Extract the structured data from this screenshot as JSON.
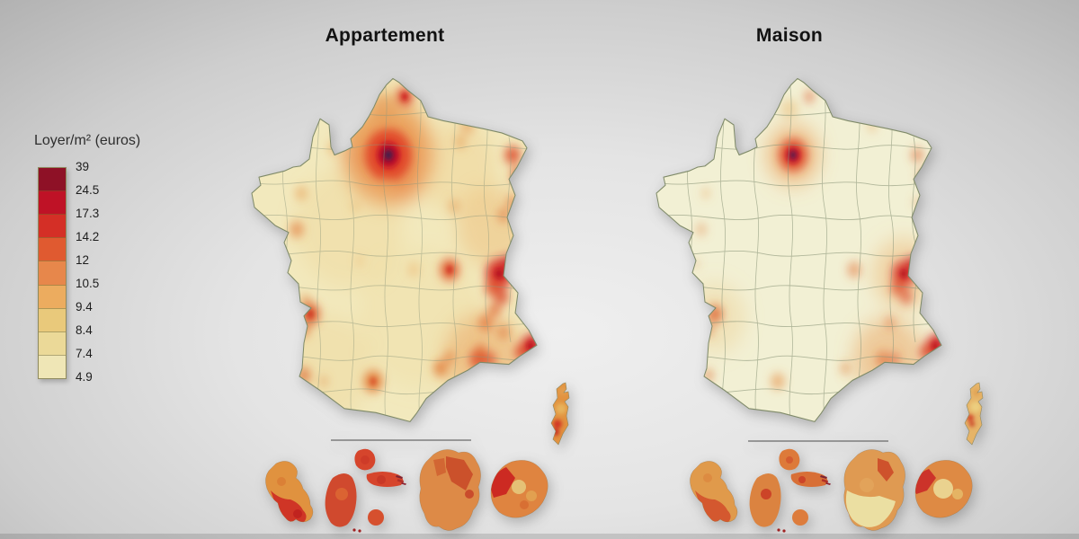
{
  "figure": {
    "panels": [
      {
        "title": "Appartement"
      },
      {
        "title": "Maison"
      }
    ],
    "legend": {
      "title": "Loyer/m² (euros)",
      "break_labels": [
        "39",
        "24.5",
        "17.3",
        "14.2",
        "12",
        "10.5",
        "9.4",
        "8.4",
        "7.4",
        "4.9"
      ],
      "band_colors": [
        "#8e1126",
        "#bf1226",
        "#d42f26",
        "#e05a30",
        "#e7874b",
        "#ecac5f",
        "#e9c97b",
        "#ebd998",
        "#efe6b6"
      ]
    }
  },
  "chart_data": {
    "type": "heatmap",
    "subtype": "choropleth_map",
    "panels": [
      "Appartement",
      "Maison"
    ],
    "legend_title": "Loyer/m² (euros)",
    "legend_position": "left",
    "scale_breaks": [
      4.9,
      7.4,
      8.4,
      9.4,
      10.5,
      12,
      14.2,
      17.3,
      24.5,
      39
    ],
    "scale_colors_low_to_high": [
      "#efe6b6",
      "#ebd998",
      "#e9c97b",
      "#ecac5f",
      "#e7874b",
      "#e05a30",
      "#d42f26",
      "#bf1226",
      "#8e1126"
    ],
    "value_range": [
      4.9,
      39
    ]
  }
}
